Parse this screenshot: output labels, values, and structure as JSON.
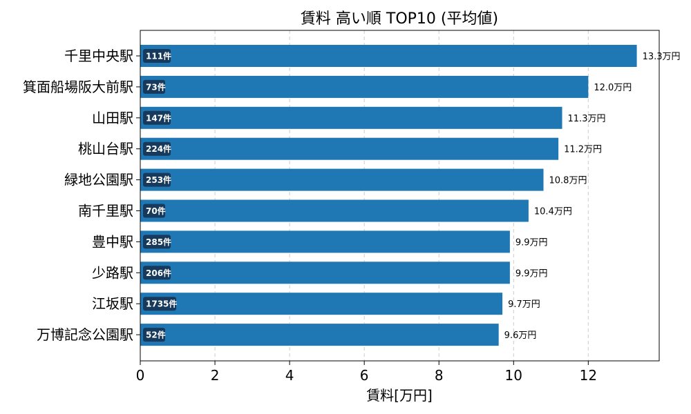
{
  "chart_data": {
    "type": "bar",
    "orientation": "horizontal",
    "title": "賃料 高い順 TOP10 (平均値)",
    "xlabel": "賃料[万円]",
    "ylabel": "",
    "xlim": [
      0,
      13.9
    ],
    "xticks": [
      0,
      2,
      4,
      6,
      8,
      10,
      12
    ],
    "grid": "x-dashed",
    "bar_color": "#1f77b4",
    "count_badge_color": "#173a5c",
    "value_suffix": "万円",
    "categories": [
      "千里中央駅",
      "箕面船場阪大前駅",
      "山田駅",
      "桃山台駅",
      "緑地公園駅",
      "南千里駅",
      "豊中駅",
      "少路駅",
      "江坂駅",
      "万博記念公園駅"
    ],
    "values": [
      13.3,
      12.0,
      11.3,
      11.2,
      10.8,
      10.4,
      9.9,
      9.9,
      9.7,
      9.6
    ],
    "value_labels": [
      "13.3万円",
      "12.0万円",
      "11.3万円",
      "11.2万円",
      "10.8万円",
      "10.4万円",
      "9.9万円",
      "9.9万円",
      "9.7万円",
      "9.6万円"
    ],
    "counts": [
      "111件",
      "73件",
      "147件",
      "224件",
      "253件",
      "70件",
      "285件",
      "206件",
      "1735件",
      "52件"
    ]
  }
}
